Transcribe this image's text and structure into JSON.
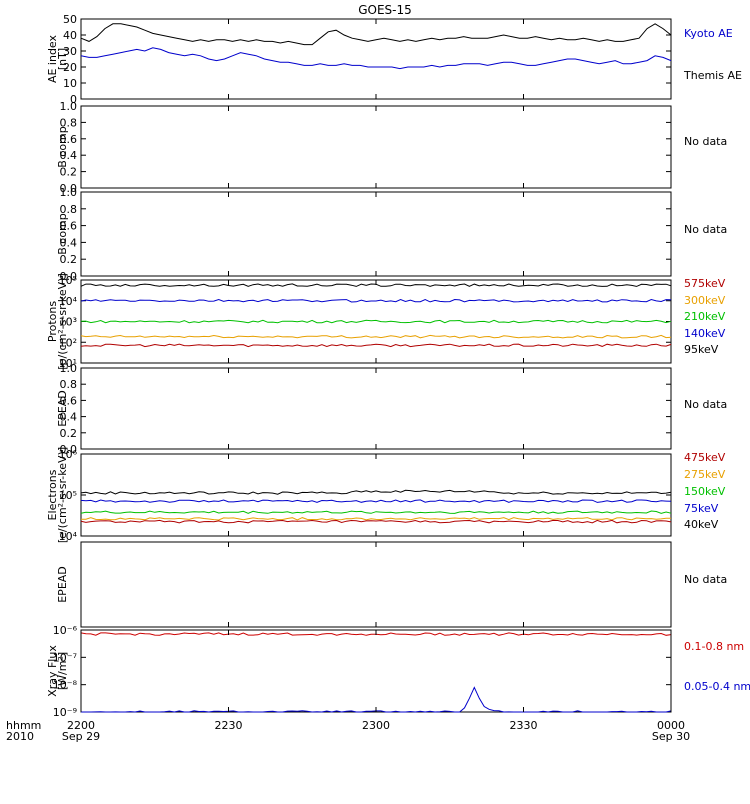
{
  "title": "GOES-15",
  "time_axis": {
    "ticks": [
      {
        "label": "2200",
        "sub": "Sep 29"
      },
      {
        "label": "2230",
        "sub": ""
      },
      {
        "label": "2300",
        "sub": ""
      },
      {
        "label": "2330",
        "sub": ""
      },
      {
        "label": "0000",
        "sub": "Sep 30"
      }
    ],
    "left_label_1": "hhmm",
    "left_label_2": "2010"
  },
  "chart_data": [
    {
      "id": "ae",
      "type": "line",
      "ylabel_lines": [
        "AE index",
        "[nT]"
      ],
      "scale": "linear",
      "ylim": [
        0,
        50
      ],
      "yticks": [
        "0",
        "10",
        "20",
        "30",
        "40",
        "50"
      ],
      "legend": [
        {
          "label": "Kyoto AE",
          "color": "#0000cc"
        },
        {
          "label": "Themis AE",
          "color": "#000000"
        }
      ],
      "series": [
        {
          "name": "Themis AE",
          "color": "#000000",
          "values": [
            38,
            36,
            39,
            44,
            47,
            47,
            46,
            45,
            43,
            41,
            40,
            39,
            38,
            37,
            36,
            37,
            36,
            37,
            37,
            36,
            37,
            36,
            37,
            36,
            36,
            35,
            36,
            35,
            34,
            34,
            38,
            42,
            43,
            40,
            38,
            37,
            36,
            37,
            38,
            37,
            36,
            37,
            36,
            37,
            38,
            37,
            38,
            38,
            39,
            38,
            38,
            38,
            39,
            40,
            39,
            38,
            38,
            39,
            38,
            37,
            38,
            37,
            37,
            38,
            37,
            36,
            37,
            36,
            36,
            37,
            38,
            44,
            47,
            44,
            40
          ]
        },
        {
          "name": "Kyoto AE",
          "color": "#0000cc",
          "values": [
            27,
            26,
            26,
            27,
            28,
            29,
            30,
            31,
            30,
            32,
            31,
            29,
            28,
            27,
            28,
            27,
            25,
            24,
            25,
            27,
            29,
            28,
            27,
            25,
            24,
            23,
            23,
            22,
            21,
            21,
            22,
            21,
            21,
            22,
            21,
            21,
            20,
            20,
            20,
            20,
            19,
            20,
            20,
            20,
            21,
            20,
            21,
            21,
            22,
            22,
            22,
            21,
            22,
            23,
            23,
            22,
            21,
            21,
            22,
            23,
            24,
            25,
            25,
            24,
            23,
            22,
            23,
            24,
            22,
            22,
            23,
            24,
            27,
            26,
            24
          ]
        }
      ]
    },
    {
      "id": "bcomp1",
      "type": "line",
      "ylabel_lines": [
        "B comp"
      ],
      "scale": "linear",
      "ylim": [
        0,
        1
      ],
      "yticks": [
        "0.0",
        "0.2",
        "0.4",
        "0.6",
        "0.8",
        "1.0"
      ],
      "legend": [
        {
          "label": "No data",
          "color": "#000000"
        }
      ],
      "series": []
    },
    {
      "id": "bcomp2",
      "type": "line",
      "ylabel_lines": [
        "B comp"
      ],
      "scale": "linear",
      "ylim": [
        0,
        1
      ],
      "yticks": [
        "0.0",
        "0.2",
        "0.4",
        "0.6",
        "0.8",
        "1.0"
      ],
      "legend": [
        {
          "label": "No data",
          "color": "#000000"
        }
      ],
      "series": []
    },
    {
      "id": "protons",
      "type": "line",
      "ylabel_lines": [
        "Protons",
        "[p/(cm²-s-sr-keV)]"
      ],
      "scale": "log",
      "ylim": [
        1,
        5
      ],
      "yticks": [
        "10¹",
        "10²",
        "10³",
        "10⁴",
        "10⁵"
      ],
      "legend": [
        {
          "label": "575keV",
          "color": "#b00000"
        },
        {
          "label": "300keV",
          "color": "#e8a000"
        },
        {
          "label": "210keV",
          "color": "#00c000"
        },
        {
          "label": "140keV",
          "color": "#0000cc"
        },
        {
          "label": "95keV",
          "color": "#000000"
        }
      ],
      "series": [
        {
          "name": "95keV",
          "color": "#000000",
          "constant": 4.75
        },
        {
          "name": "140keV",
          "color": "#0000cc",
          "constant": 4.0
        },
        {
          "name": "210keV",
          "color": "#00c000",
          "constant": 3.0
        },
        {
          "name": "300keV",
          "color": "#e8a000",
          "constant": 2.27
        },
        {
          "name": "575keV",
          "color": "#b00000",
          "constant": 1.85
        }
      ]
    },
    {
      "id": "epead1",
      "type": "line",
      "ylabel_lines": [
        "EPEAD"
      ],
      "scale": "linear",
      "ylim": [
        0,
        1
      ],
      "yticks": [
        "0.0",
        "0.2",
        "0.4",
        "0.6",
        "0.8",
        "1.0"
      ],
      "legend": [
        {
          "label": "No data",
          "color": "#000000"
        }
      ],
      "series": []
    },
    {
      "id": "electrons",
      "type": "line",
      "ylabel_lines": [
        "Electrons",
        "[e/(cm²-s-sr-keV)]"
      ],
      "scale": "log",
      "ylim": [
        4,
        6
      ],
      "yticks": [
        "10⁴",
        "10⁵",
        "10⁶"
      ],
      "legend": [
        {
          "label": "475keV",
          "color": "#b00000"
        },
        {
          "label": "275keV",
          "color": "#e8a000"
        },
        {
          "label": "150keV",
          "color": "#00c000"
        },
        {
          "label": "75keV",
          "color": "#0000cc"
        },
        {
          "label": "40keV",
          "color": "#000000"
        }
      ],
      "series": [
        {
          "name": "40keV",
          "color": "#000000",
          "constant": 5.05
        },
        {
          "name": "75keV",
          "color": "#0000cc",
          "constant": 4.85
        },
        {
          "name": "150keV",
          "color": "#00c000",
          "constant": 4.58
        },
        {
          "name": "275keV",
          "color": "#e8a000",
          "constant": 4.42
        },
        {
          "name": "475keV",
          "color": "#b00000",
          "constant": 4.35
        }
      ]
    },
    {
      "id": "epead2",
      "type": "line",
      "ylabel_lines": [
        "EPEAD"
      ],
      "scale": "linear",
      "ylim": [
        0,
        1
      ],
      "yticks": [],
      "legend": [
        {
          "label": "No data",
          "color": "#000000"
        }
      ],
      "series": []
    },
    {
      "id": "xray",
      "type": "line",
      "ylabel_lines": [
        "Xray Flux",
        "[W/m²]"
      ],
      "scale": "log",
      "ylim": [
        -9,
        -6
      ],
      "yticks": [
        "10⁻⁹",
        "10⁻⁸",
        "10⁻⁷",
        "10⁻⁶"
      ],
      "yticks_note": "ticks drawn top-to-bottom as printed",
      "legend": [
        {
          "label": "0.1-0.8 nm",
          "color": "#cc0000"
        },
        {
          "label": "0.05-0.4 nm",
          "color": "#0000cc"
        }
      ],
      "series": [
        {
          "name": "0.1-0.8 nm",
          "color": "#cc0000",
          "constant": -6.15
        },
        {
          "name": "0.05-0.4 nm",
          "color": "#0000cc",
          "constant": -9.0
        }
      ]
    }
  ]
}
